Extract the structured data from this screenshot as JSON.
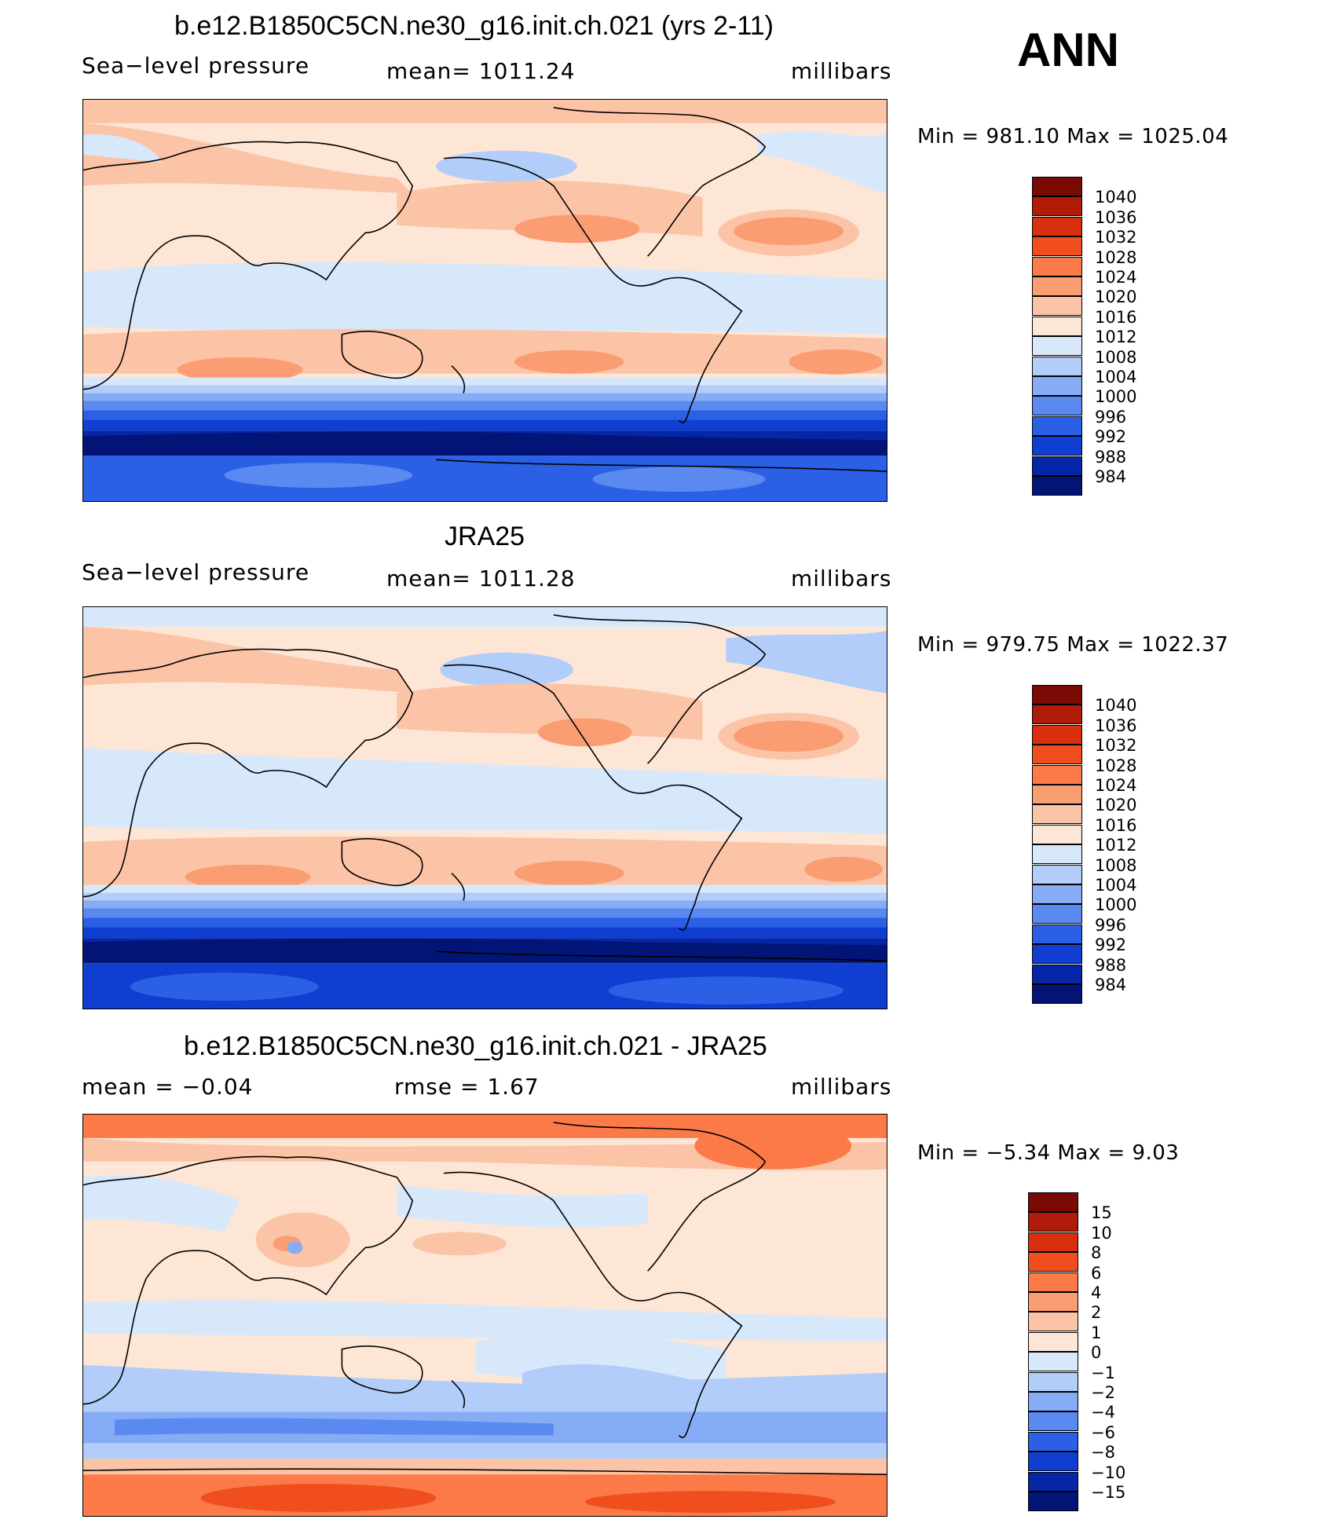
{
  "season": "ANN",
  "panels": [
    {
      "title": "b.e12.B1850C5CN.ne30_g16.init.ch.021 (yrs 2-11)",
      "left_label": "Sea−level pressure",
      "center_label": "mean=  1011.24",
      "right_label": "millibars",
      "minmax": "Min  =  981.10  Max  =  1025.04"
    },
    {
      "title": "JRA25",
      "left_label": "Sea−level pressure",
      "center_label": "mean=  1011.28",
      "right_label": "millibars",
      "minmax": "Min  =  979.75  Max  =  1022.37"
    },
    {
      "title": "b.e12.B1850C5CN.ne30_g16.init.ch.021 - JRA25",
      "left_label": "mean  =     −0.04",
      "center_label": "rmse  =      1.67",
      "right_label": "millibars",
      "minmax": "Min  =    −5.34  Max  =      9.03"
    }
  ],
  "colorbar_abs": {
    "labels": [
      "1040",
      "1036",
      "1032",
      "1028",
      "1024",
      "1020",
      "1016",
      "1012",
      "1008",
      "1004",
      "1000",
      "996",
      "992",
      "988",
      "984"
    ],
    "colors": [
      "#7a0a04",
      "#b01c08",
      "#d8300e",
      "#f04e1e",
      "#fc7a48",
      "#fb9d72",
      "#fcc4a6",
      "#fde6d6",
      "#d8e8fb",
      "#b2cdf9",
      "#86acf5",
      "#5a8af0",
      "#2a5fe6",
      "#0f3ed1",
      "#0526a6",
      "#021476"
    ]
  },
  "colorbar_diff": {
    "labels": [
      "15",
      "10",
      "8",
      "6",
      "4",
      "2",
      "1",
      "0",
      "−1",
      "−2",
      "−4",
      "−6",
      "−8",
      "−10",
      "−15"
    ],
    "colors": [
      "#7a0a04",
      "#b01c08",
      "#d8300e",
      "#f04e1e",
      "#fc7a48",
      "#fb9d72",
      "#fcc4a6",
      "#fde6d6",
      "#d8e8fb",
      "#b2cdf9",
      "#86acf5",
      "#5a8af0",
      "#2a5fe6",
      "#0f3ed1",
      "#0526a6",
      "#021476"
    ]
  }
}
